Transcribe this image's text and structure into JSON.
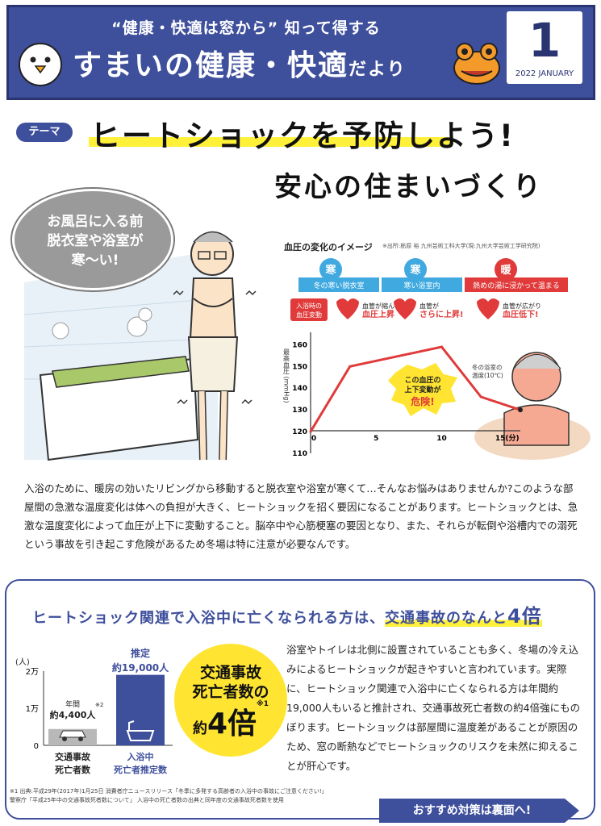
{
  "header": {
    "subtitle": "“健康・快適は窓から” 知って得する",
    "title_a": "すまいの健康・快適",
    "title_b": "だより",
    "issue_number": "1",
    "issue_date": "2022 JANUARY"
  },
  "theme": {
    "tag": "テーマ",
    "title": "ヒートショックを予防しよう!",
    "subtitle": "安心の住まいづくり"
  },
  "bubble": {
    "line1": "お風呂に入る前",
    "line2": "脱衣室や浴室が",
    "line3": "寒〜い!"
  },
  "bp_chart": {
    "title": "血圧の変化のイメージ",
    "source": "※出所:栃原 裕 九州芸術工科大学(現:九州大学芸術工学研究院)",
    "steps": [
      {
        "badge": "寒",
        "label": "冬の寒い脱衣室"
      },
      {
        "badge": "寒",
        "label": "寒い浴室内"
      },
      {
        "badge": "暖",
        "label": "熱めの湯に浸かって温まる"
      }
    ],
    "onset_label_1": "入浴時の",
    "onset_label_2": "血圧変動",
    "events": [
      {
        "line1": "血管が縮んで",
        "line2": "血圧上昇"
      },
      {
        "line1": "血管が",
        "line2": "さらに上昇!"
      },
      {
        "line1": "血管が広がり",
        "line2": "血圧低下!"
      }
    ],
    "ylabel": "最高血圧 (mmHg)",
    "yticks": [
      "160",
      "150",
      "140",
      "130",
      "120",
      "110"
    ],
    "xticks": [
      "0",
      "5",
      "10",
      "15(分)"
    ],
    "danger_line1": "この血圧の",
    "danger_line2": "上下変動が",
    "danger_line3": "危険!",
    "temp_note_1": "冬の浴室の",
    "temp_note_2": "温度(10℃)"
  },
  "chart_data": {
    "type": "line",
    "title": "血圧の変化のイメージ",
    "xlabel": "分",
    "ylabel": "最高血圧 (mmHg)",
    "x": [
      0,
      3,
      10,
      13,
      16
    ],
    "y": [
      120,
      150,
      159,
      136,
      130
    ],
    "xlim": [
      0,
      16
    ],
    "ylim": [
      110,
      162
    ],
    "grid": false,
    "annotations": [
      "入浴時の血圧変動",
      "この血圧の上下変動が危険!",
      "冬の浴室の温度(10℃)"
    ]
  },
  "body_text": "入浴のために、暖房の効いたリビングから移動すると脱衣室や浴室が寒くて…そんなお悩みはありませんか?このような部屋間の急激な温度変化は体への負担が大きく、ヒートショックを招く要因になることがあります。ヒートショックとは、急激な温度変化によって血圧が上下に変動すること。脳卒中や心筋梗塞の要因となり、また、それらが転倒や浴槽内での溺死という事故を引き起こす危険があるため冬場は特に注意が必要なんです。",
  "comparison": {
    "heading_a": "ヒートショック関連で入浴中に亡くなられる方は、",
    "heading_b": "交通事故のなんと",
    "heading_num": "4倍",
    "unit": "(人)",
    "yticks": [
      "2万",
      "1万",
      "0"
    ],
    "bar1_top_1": "年間",
    "bar1_top_2": "約4,400人",
    "bar1_note": "※2",
    "bar1_label_1": "交通事故",
    "bar1_label_2": "死亡者数",
    "bar2_top_1": "推定",
    "bar2_top_2": "約19,000人",
    "bar2_label_1": "入浴中",
    "bar2_label_2": "死亡者推定数",
    "circle_line1": "交通事故",
    "circle_line2": "死亡者数の",
    "circle_yaku": "約",
    "circle_big": "4倍",
    "circle_note": "※1",
    "color_bar1": "#b8b8b8",
    "color_bar2": "#3e4f9c"
  },
  "right_text": "浴室やトイレは北側に設置されていることも多く、冬場の冷え込みによるヒートショックが起きやすいと言われています。実際に、ヒートショック関連で入浴中に亡くなられる方は年間約19,000人もいると推計され、交通事故死亡者数の約4倍強にものぼります。ヒートショックは部屋間に温度差があることが原因のため、窓の断熱などでヒートショックのリスクを未然に抑えることが肝心です。",
  "footnote_1": "※1 出典:平成29年(2017年)1月25日 消費者庁ニュースリリース「冬季に多発する高齢者の入浴中の事故にご注意ください!」",
  "footnote_2": "警察庁「平成25年中の交通事故死者数について」 入浴中の死亡者数の出典と同年度の交通事故死者数を使用",
  "cta": "おすすめ対策は裏面へ!",
  "colors": {
    "brand": "#3e4f9c",
    "accent_yellow": "#ffe531",
    "danger_red": "#e03a3a",
    "cold_blue": "#3fa9e0"
  }
}
